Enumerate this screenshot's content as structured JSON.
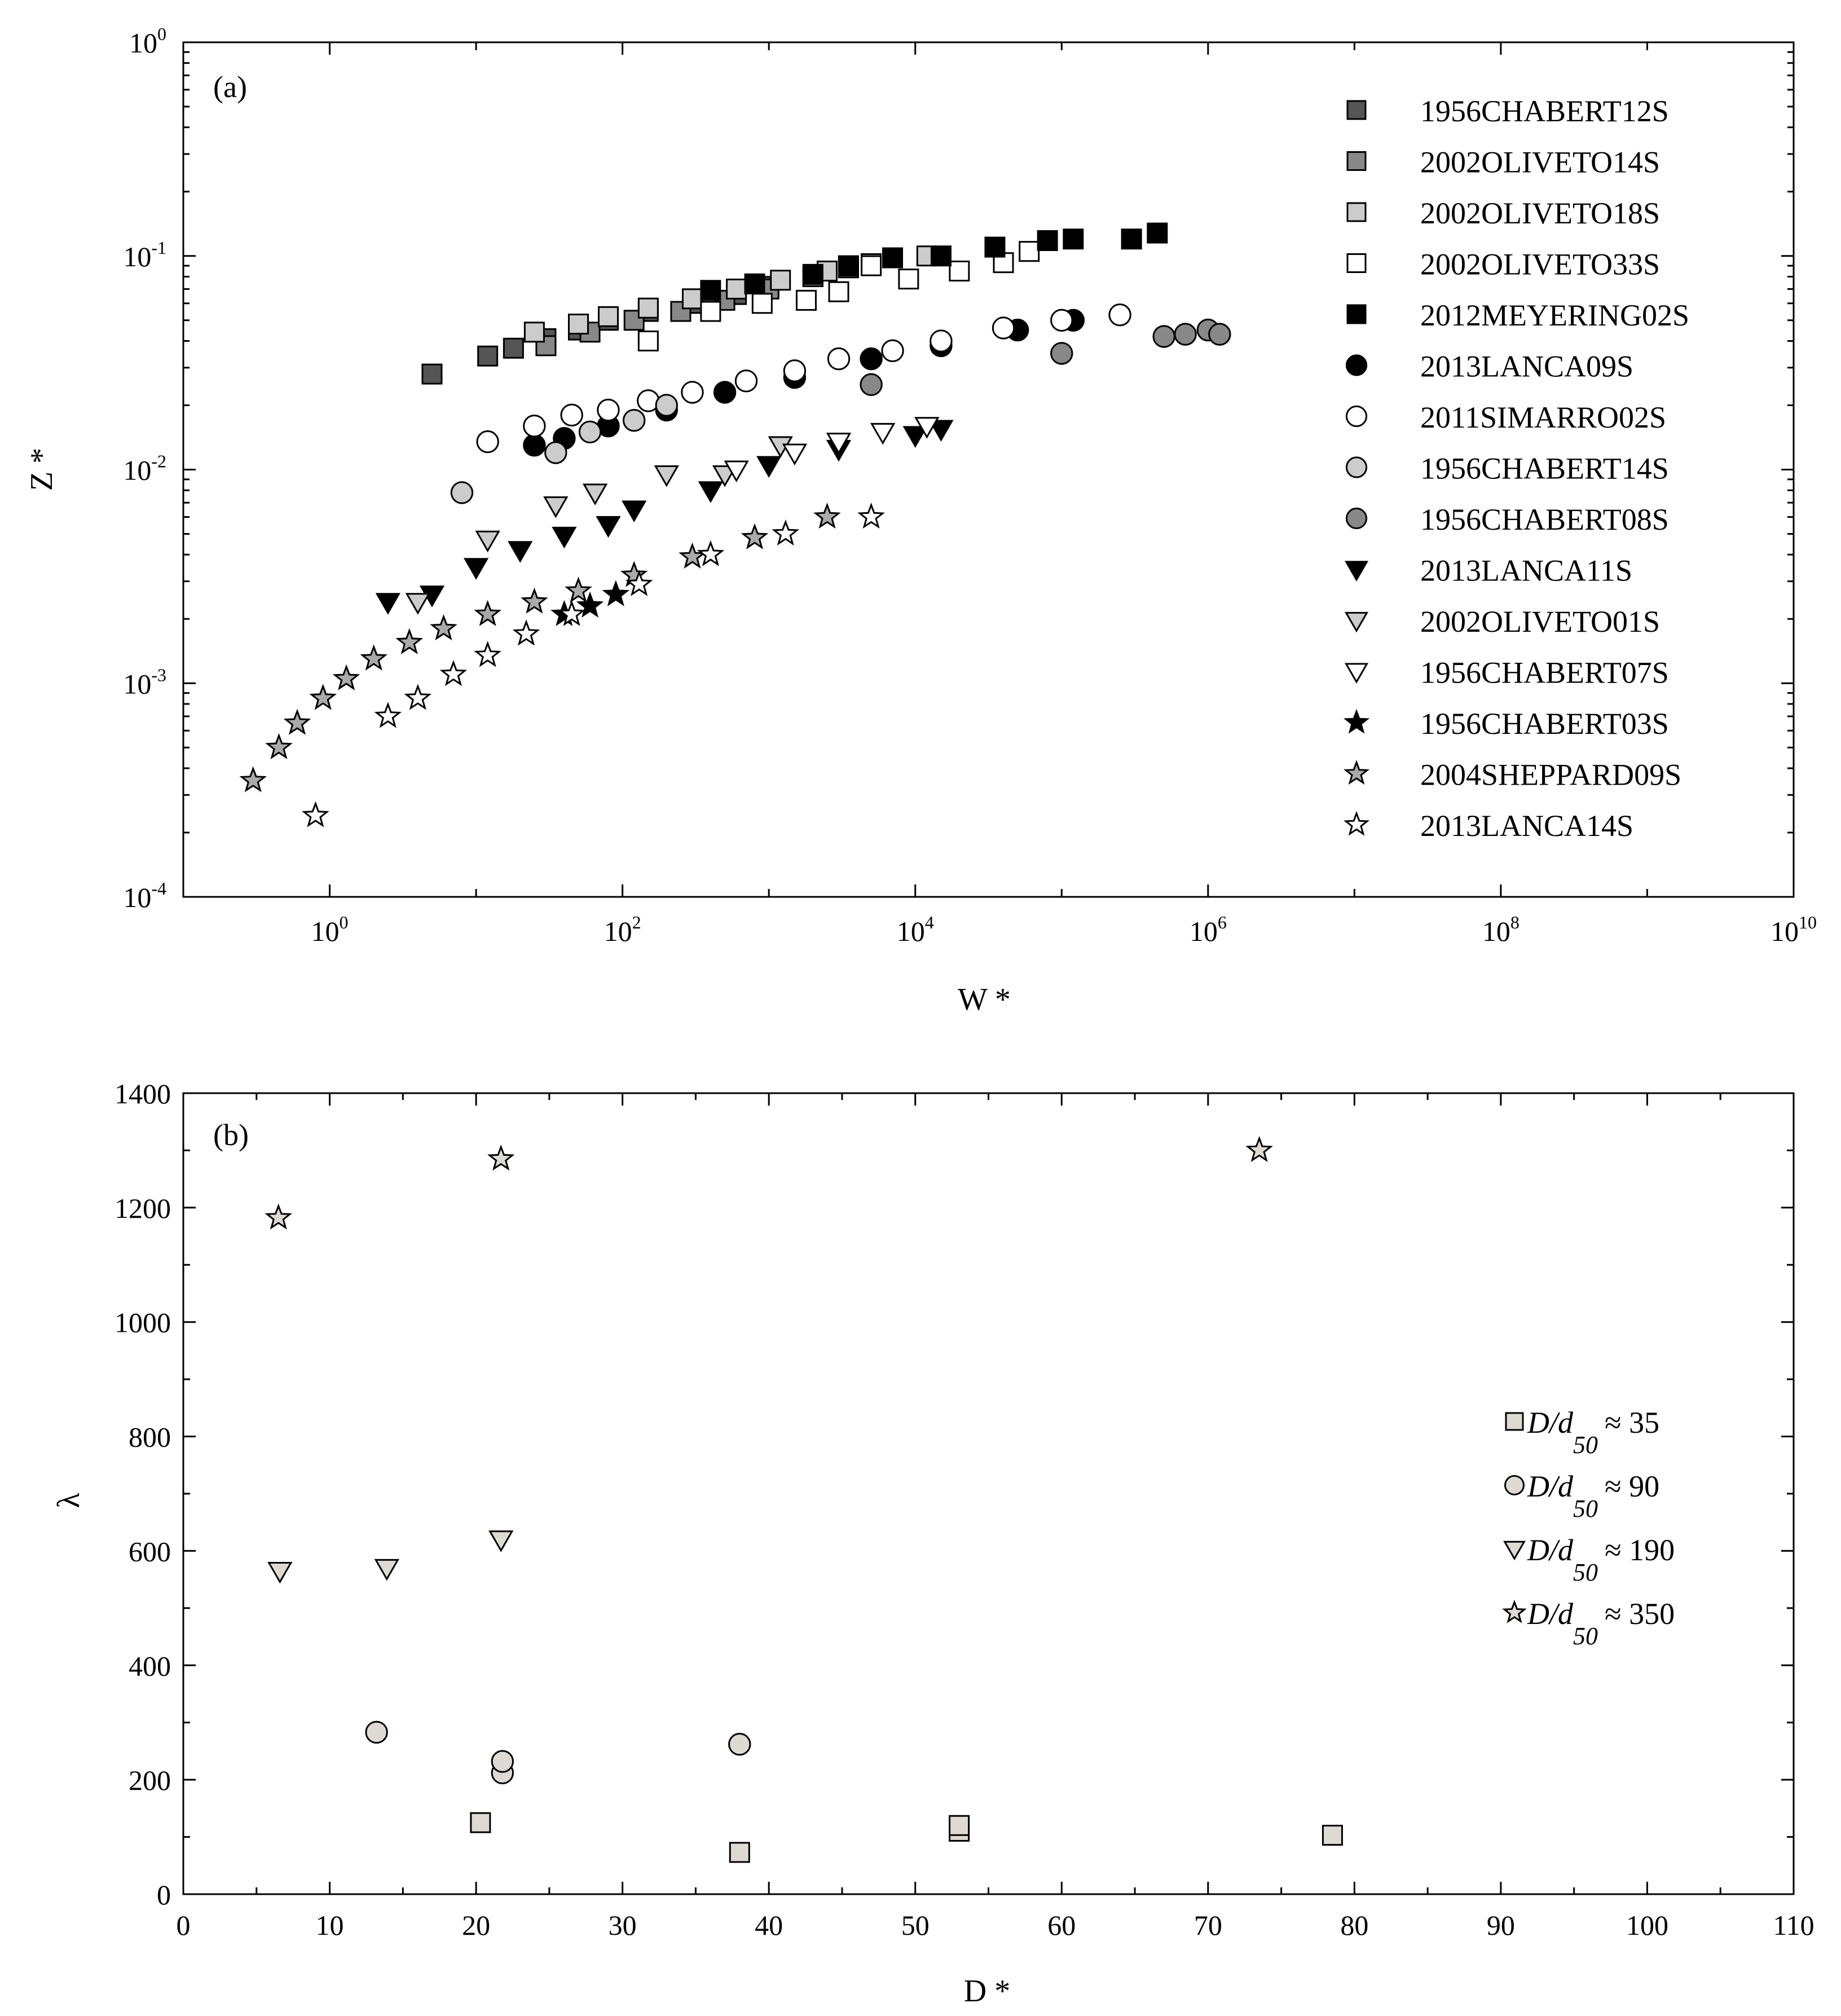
{
  "chart_data": [
    {
      "panel_label": "(a)",
      "type": "scatter",
      "xscale": "log",
      "yscale": "log",
      "xlabel": "W *",
      "ylabel": "Z *",
      "xlim": [
        0.1,
        10000000000
      ],
      "ylim": [
        0.0001,
        1
      ],
      "x_ticks": [
        {
          "base": "10",
          "exp": "0",
          "value": 1
        },
        {
          "base": "10",
          "exp": "2",
          "value": 100
        },
        {
          "base": "10",
          "exp": "4",
          "value": 10000
        },
        {
          "base": "10",
          "exp": "6",
          "value": 1000000
        },
        {
          "base": "10",
          "exp": "8",
          "value": 100000000
        },
        {
          "base": "10",
          "exp": "10",
          "value": 10000000000
        }
      ],
      "y_ticks": [
        {
          "base": "10",
          "exp": "0",
          "value": 1
        },
        {
          "base": "10",
          "exp": "-1",
          "value": 0.1
        },
        {
          "base": "10",
          "exp": "-2",
          "value": 0.01
        },
        {
          "base": "10",
          "exp": "-3",
          "value": 0.001
        },
        {
          "base": "10",
          "exp": "-4",
          "value": 0.0001
        }
      ],
      "legend_position": "top-right",
      "series": [
        {
          "name": "1956CHABERT12S",
          "marker": "square",
          "fill": "#555555",
          "x": [
            5,
            12,
            18,
            30,
            50,
            80,
            150,
            300,
            600,
            1000,
            2000,
            3500
          ],
          "y": [
            0.028,
            0.034,
            0.037,
            0.041,
            0.045,
            0.05,
            0.055,
            0.06,
            0.066,
            0.072,
            0.08,
            0.088
          ]
        },
        {
          "name": "2002OLIVETO14S",
          "marker": "square",
          "fill": "#888888",
          "x": [
            30,
            60,
            120,
            250,
            500,
            1000,
            2000
          ],
          "y": [
            0.038,
            0.044,
            0.05,
            0.055,
            0.062,
            0.07,
            0.08
          ]
        },
        {
          "name": "2002OLIVETO18S",
          "marker": "square",
          "fill": "#cccccc",
          "x": [
            25,
            50,
            80,
            150,
            300,
            600,
            1200,
            2500,
            5000,
            12000
          ],
          "y": [
            0.044,
            0.048,
            0.052,
            0.057,
            0.063,
            0.07,
            0.077,
            0.085,
            0.092,
            0.1
          ]
        },
        {
          "name": "2002OLIVETO33S",
          "marker": "square",
          "fill": "#ffffff",
          "x": [
            150,
            400,
            900,
            1800,
            3000,
            5000,
            9000,
            20000,
            40000,
            60000
          ],
          "y": [
            0.04,
            0.055,
            0.06,
            0.062,
            0.068,
            0.09,
            0.078,
            0.085,
            0.093,
            0.105
          ]
        },
        {
          "name": "2012MEYERING02S",
          "marker": "square",
          "fill": "#000000",
          "x": [
            400,
            800,
            2000,
            3500,
            7000,
            15000,
            35000,
            80000,
            120000,
            300000,
            450000
          ],
          "y": [
            0.069,
            0.074,
            0.082,
            0.09,
            0.098,
            0.1,
            0.11,
            0.118,
            0.12,
            0.12,
            0.128
          ]
        },
        {
          "name": "2013LANCA09S",
          "marker": "circle",
          "fill": "#000000",
          "x": [
            25,
            40,
            80,
            200,
            500,
            1500,
            5000,
            15000,
            50000,
            120000
          ],
          "y": [
            0.013,
            0.014,
            0.016,
            0.019,
            0.023,
            0.027,
            0.033,
            0.038,
            0.045,
            0.05
          ]
        },
        {
          "name": "2011SIMARRO02S",
          "marker": "circle",
          "fill": "#ffffff",
          "x": [
            12,
            25,
            45,
            80,
            150,
            300,
            700,
            1500,
            3000,
            7000,
            15000,
            40000,
            100000,
            250000
          ],
          "y": [
            0.0135,
            0.016,
            0.018,
            0.019,
            0.021,
            0.023,
            0.026,
            0.029,
            0.033,
            0.036,
            0.04,
            0.046,
            0.05,
            0.053
          ]
        },
        {
          "name": "1956CHABERT14S",
          "marker": "circle",
          "fill": "#cccccc",
          "x": [
            8,
            35,
            60,
            120,
            200
          ],
          "y": [
            0.0078,
            0.012,
            0.015,
            0.017,
            0.02
          ]
        },
        {
          "name": "1956CHABERT08S",
          "marker": "circle",
          "fill": "#888888",
          "x": [
            5000,
            100000,
            500000,
            700000,
            1000000,
            1200000
          ],
          "y": [
            0.025,
            0.035,
            0.042,
            0.043,
            0.045,
            0.043
          ]
        },
        {
          "name": "2013LANCA11S",
          "marker": "triangle-down",
          "fill": "#000000",
          "x": [
            2.5,
            5,
            10,
            20,
            40,
            80,
            120,
            400,
            1000,
            3000,
            10000,
            15000
          ],
          "y": [
            0.0024,
            0.0026,
            0.0035,
            0.0042,
            0.0049,
            0.0055,
            0.0065,
            0.008,
            0.0105,
            0.0125,
            0.0145,
            0.0155
          ]
        },
        {
          "name": "2002OLIVETO01S",
          "marker": "triangle-down",
          "fill": "#cccccc",
          "x": [
            4,
            12,
            35,
            65,
            200,
            500,
            1200
          ],
          "y": [
            0.0024,
            0.0047,
            0.0068,
            0.0078,
            0.0095,
            0.0095,
            0.013
          ]
        },
        {
          "name": "1956CHABERT07S",
          "marker": "triangle-down",
          "fill": "#ffffff",
          "x": [
            600,
            1500,
            3000,
            6000,
            12000
          ],
          "y": [
            0.01,
            0.012,
            0.0135,
            0.015,
            0.016
          ]
        },
        {
          "name": "1956CHABERT03S",
          "marker": "star",
          "fill": "#000000",
          "x": [
            40,
            60,
            90
          ],
          "y": [
            0.0021,
            0.0023,
            0.0026
          ]
        },
        {
          "name": "2004SHEPPARD09S",
          "marker": "star",
          "fill": "#aaaaaa",
          "x": [
            0.3,
            0.45,
            0.6,
            0.9,
            1.3,
            2,
            3.5,
            6,
            12,
            25,
            50,
            120,
            300,
            800,
            2500
          ],
          "y": [
            0.00035,
            0.0005,
            0.00065,
            0.00085,
            0.00105,
            0.0013,
            0.00155,
            0.0018,
            0.0021,
            0.0024,
            0.0027,
            0.0032,
            0.0039,
            0.0048,
            0.006
          ]
        },
        {
          "name": "2013LANCA14S",
          "marker": "star",
          "fill": "#ffffff",
          "x": [
            0.8,
            2.5,
            4,
            7,
            12,
            22,
            45,
            130,
            400,
            1300,
            5000
          ],
          "y": [
            0.00024,
            0.0007,
            0.00085,
            0.0011,
            0.00135,
            0.0017,
            0.0021,
            0.0029,
            0.004,
            0.005,
            0.006
          ]
        }
      ]
    },
    {
      "panel_label": "(b)",
      "type": "scatter",
      "xlabel": "D *",
      "ylabel": "λ",
      "xlim": [
        0,
        110
      ],
      "ylim": [
        0,
        1400
      ],
      "x_ticks": [
        "0",
        "10",
        "20",
        "30",
        "40",
        "50",
        "60",
        "70",
        "80",
        "90",
        "100",
        "110"
      ],
      "y_ticks": [
        "0",
        "200",
        "400",
        "600",
        "800",
        "1000",
        "1200",
        "1400"
      ],
      "legend_position": "center-right",
      "series": [
        {
          "legend_text": "D/d",
          "legend_sub": "50",
          "legend_value": "≈ 35",
          "marker": "square",
          "fill": "#dedad2",
          "x": [
            20.3,
            38,
            53,
            53,
            78.5
          ],
          "y": [
            125,
            73,
            110,
            120,
            103
          ]
        },
        {
          "legend_text": "D/d",
          "legend_sub": "50",
          "legend_value": "≈ 90",
          "marker": "circle",
          "fill": "#dedad2",
          "x": [
            13.2,
            21.8,
            21.8,
            38
          ],
          "y": [
            283,
            212,
            232,
            262
          ]
        },
        {
          "legend_text": "D/d",
          "legend_sub": "50",
          "legend_value": "≈ 190",
          "marker": "triangle-down",
          "fill": "#dedad2",
          "x": [
            6.6,
            13.9,
            21.7
          ],
          "y": [
            565,
            570,
            620
          ]
        },
        {
          "legend_text": "D/d",
          "legend_sub": "50",
          "legend_value": "≈ 350",
          "marker": "star",
          "fill": "#dedad2",
          "x": [
            6.5,
            21.7,
            73.5
          ],
          "y": [
            1182,
            1285,
            1300
          ]
        }
      ]
    }
  ]
}
